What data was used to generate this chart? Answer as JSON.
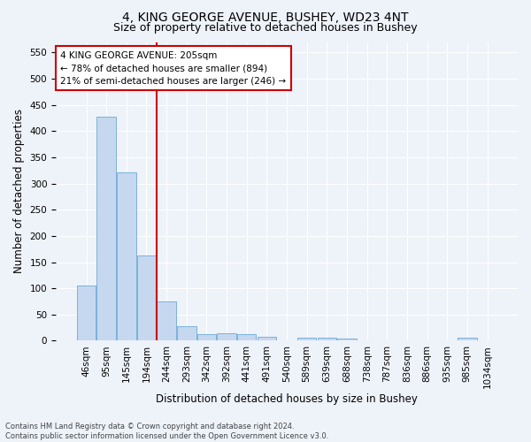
{
  "title": "4, KING GEORGE AVENUE, BUSHEY, WD23 4NT",
  "subtitle": "Size of property relative to detached houses in Bushey",
  "xlabel": "Distribution of detached houses by size in Bushey",
  "ylabel": "Number of detached properties",
  "footer_line1": "Contains HM Land Registry data © Crown copyright and database right 2024.",
  "footer_line2": "Contains public sector information licensed under the Open Government Licence v3.0.",
  "bin_labels": [
    "46sqm",
    "95sqm",
    "145sqm",
    "194sqm",
    "244sqm",
    "293sqm",
    "342sqm",
    "392sqm",
    "441sqm",
    "491sqm",
    "540sqm",
    "589sqm",
    "639sqm",
    "688sqm",
    "738sqm",
    "787sqm",
    "836sqm",
    "886sqm",
    "935sqm",
    "985sqm",
    "1034sqm"
  ],
  "bar_values": [
    105,
    428,
    322,
    163,
    75,
    27,
    12,
    14,
    12,
    8,
    0,
    5,
    5,
    4,
    0,
    0,
    0,
    0,
    0,
    5,
    0
  ],
  "bar_color": "#c5d8f0",
  "bar_edge_color": "#6aaad4",
  "vline_color": "#cc0000",
  "vline_position": 3.5,
  "annotation_text": "4 KING GEORGE AVENUE: 205sqm\n← 78% of detached houses are smaller (894)\n21% of semi-detached houses are larger (246) →",
  "annotation_box_facecolor": "#ffffff",
  "annotation_box_edgecolor": "#cc0000",
  "ylim": [
    0,
    570
  ],
  "yticks": [
    0,
    50,
    100,
    150,
    200,
    250,
    300,
    350,
    400,
    450,
    500,
    550
  ],
  "bg_color": "#eef2f9",
  "plot_bg_color": "#eef2f9",
  "title_fontsize": 10,
  "subtitle_fontsize": 9,
  "axis_label_fontsize": 8.5,
  "tick_fontsize": 7.5,
  "annotation_fontsize": 7.5,
  "footer_fontsize": 6
}
